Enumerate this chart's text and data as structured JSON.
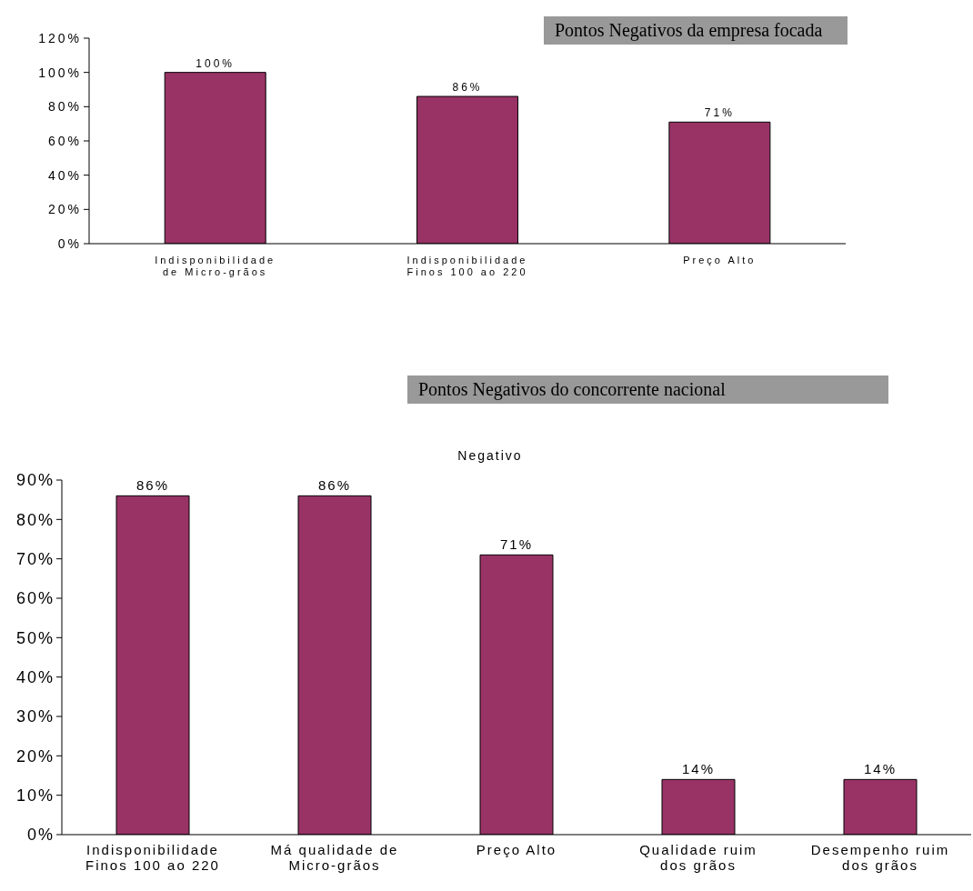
{
  "chart_data": [
    {
      "type": "bar",
      "title": "Pontos Negativos da empresa focada",
      "categories": [
        "Indisponibilidade de Micro-grãos",
        "Indisponibilidade Finos 100 ao 220",
        "Preço Alto"
      ],
      "values": [
        100,
        86,
        71
      ],
      "color": "#993366",
      "value_labels": [
        "100%",
        "86%",
        "71%"
      ],
      "ylim": [
        0,
        120
      ],
      "yticks": [
        {
          "value": 0,
          "label": "0%"
        },
        {
          "value": 20,
          "label": "20%"
        },
        {
          "value": 40,
          "label": "40%"
        },
        {
          "value": 60,
          "label": "60%"
        },
        {
          "value": 80,
          "label": "80%"
        },
        {
          "value": 100,
          "label": "100%"
        },
        {
          "value": 120,
          "label": "120%"
        }
      ],
      "grid": false,
      "legend": false
    },
    {
      "type": "bar",
      "title": "Pontos Negativos do concorrente nacional",
      "subtitle": "Negativo",
      "categories": [
        "Indisponibilidade Finos 100 ao 220",
        "Má qualidade de Micro-grãos",
        "Preço Alto",
        "Qualidade ruim dos grãos",
        "Desempenho ruim dos grãos"
      ],
      "values": [
        86,
        86,
        71,
        14,
        14
      ],
      "color": "#993366",
      "value_labels": [
        "86%",
        "86%",
        "71%",
        "14%",
        "14%"
      ],
      "ylim": [
        0,
        90
      ],
      "yticks": [
        {
          "value": 0,
          "label": "0%"
        },
        {
          "value": 10,
          "label": "10%"
        },
        {
          "value": 20,
          "label": "20%"
        },
        {
          "value": 30,
          "label": "30%"
        },
        {
          "value": 40,
          "label": "40%"
        },
        {
          "value": 50,
          "label": "50%"
        },
        {
          "value": 60,
          "label": "60%"
        },
        {
          "value": 70,
          "label": "70%"
        },
        {
          "value": 80,
          "label": "80%"
        },
        {
          "value": 90,
          "label": "90%"
        }
      ],
      "grid": false,
      "legend": false
    }
  ]
}
